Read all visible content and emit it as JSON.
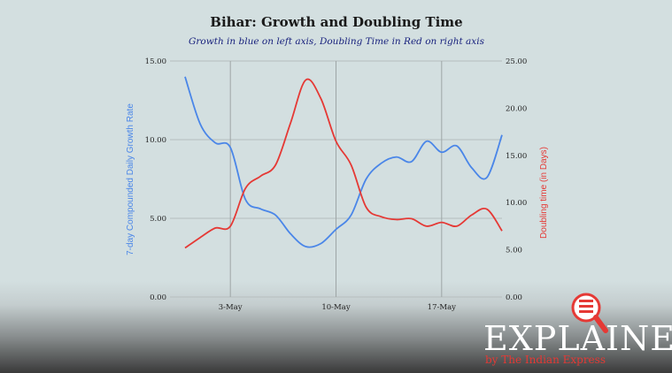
{
  "chart_data": {
    "type": "line",
    "title": "Bihar: Growth and Doubling Time",
    "subtitle": "Growth in blue on left axis, Doubling Time in Red on right axis",
    "ylabel": "7-day Compounded Daily Growth Rate",
    "y2label": "Doubling time (in Days)",
    "ylim": [
      0,
      15
    ],
    "y2lim": [
      0,
      25
    ],
    "yticks": [
      "0.00",
      "5.00",
      "10.00",
      "15.00"
    ],
    "y2ticks": [
      "0.00",
      "5.00",
      "10.00",
      "15.00",
      "20.00",
      "25.00"
    ],
    "x_range": [
      "2020-04-29",
      "2020-05-21"
    ],
    "xticks": [
      {
        "date": "2020-05-03",
        "label": "3-May"
      },
      {
        "date": "2020-05-10",
        "label": "10-May"
      },
      {
        "date": "2020-05-17",
        "label": "17-May"
      }
    ],
    "x": [
      "2020-04-30",
      "2020-05-01",
      "2020-05-02",
      "2020-05-03",
      "2020-05-04",
      "2020-05-05",
      "2020-05-06",
      "2020-05-07",
      "2020-05-08",
      "2020-05-09",
      "2020-05-10",
      "2020-05-11",
      "2020-05-12",
      "2020-05-13",
      "2020-05-14",
      "2020-05-15",
      "2020-05-16",
      "2020-05-17",
      "2020-05-18",
      "2020-05-19",
      "2020-05-20",
      "2020-05-21"
    ],
    "series": [
      {
        "axis": "left",
        "color": "#4a86e8",
        "values": [
          14.0,
          11.0,
          9.8,
          9.5,
          6.2,
          5.6,
          5.2,
          4.0,
          3.2,
          3.4,
          4.3,
          5.2,
          7.5,
          8.5,
          8.9,
          8.6,
          9.9,
          9.2,
          9.6,
          8.2,
          7.6,
          10.3
        ]
      },
      {
        "axis": "right",
        "color": "#e53935",
        "values": [
          5.2,
          6.3,
          7.3,
          7.5,
          11.5,
          12.8,
          14.0,
          18.5,
          23.0,
          21.0,
          16.5,
          14.0,
          9.5,
          8.5,
          8.2,
          8.3,
          7.5,
          7.9,
          7.5,
          8.7,
          9.3,
          7.0
        ]
      }
    ]
  },
  "branding": {
    "wordmark": "EXPLAINED",
    "byline": "by The Indian Express",
    "icon": "magnifier-icon",
    "icon_color": "#e53935"
  }
}
